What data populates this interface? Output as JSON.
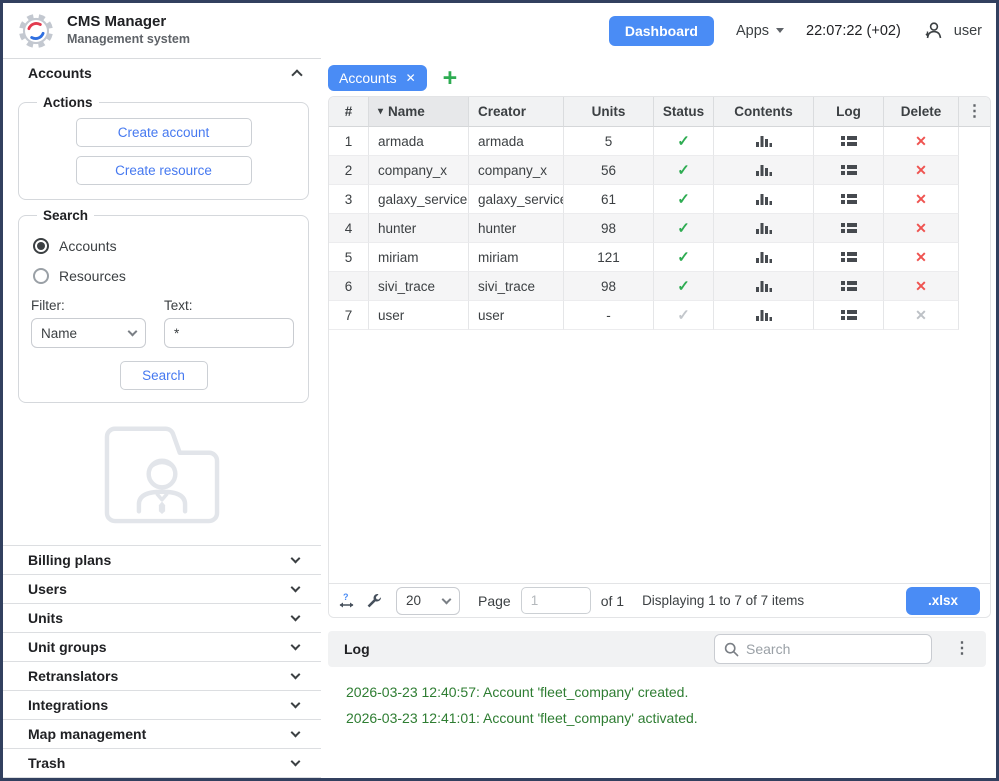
{
  "app": {
    "title": "CMS Manager",
    "subtitle": "Management system",
    "dashboard_button": "Dashboard",
    "apps_menu": "Apps",
    "clock": "22:07:22 (+02)",
    "username": "user"
  },
  "sidebar": {
    "accounts_header": "Accounts",
    "actions": {
      "legend": "Actions",
      "create_account": "Create account",
      "create_resource": "Create resource"
    },
    "search": {
      "legend": "Search",
      "radio_accounts": "Accounts",
      "radio_resources": "Resources",
      "selected_radio": "Accounts",
      "filter_label": "Filter:",
      "filter_value": "Name",
      "text_label": "Text:",
      "text_value": "*",
      "search_button": "Search"
    },
    "sections": [
      {
        "label": "Billing plans"
      },
      {
        "label": "Users"
      },
      {
        "label": "Units"
      },
      {
        "label": "Unit groups"
      },
      {
        "label": "Retranslators"
      },
      {
        "label": "Integrations"
      },
      {
        "label": "Map management"
      },
      {
        "label": "Trash"
      }
    ]
  },
  "tabs": {
    "active_tab": "Accounts",
    "add_button": "+"
  },
  "table": {
    "columns": [
      "#",
      "Name",
      "Creator",
      "Units",
      "Status",
      "Contents",
      "Log",
      "Delete"
    ],
    "sort_column": "Name",
    "rows": [
      {
        "num": "1",
        "name": "armada",
        "creator": "armada",
        "units": "5",
        "active": true
      },
      {
        "num": "2",
        "name": "company_x",
        "creator": "company_x",
        "units": "56",
        "active": true
      },
      {
        "num": "3",
        "name": "galaxy_service",
        "creator": "galaxy_service",
        "units": "61",
        "active": true
      },
      {
        "num": "4",
        "name": "hunter",
        "creator": "hunter",
        "units": "98",
        "active": true
      },
      {
        "num": "5",
        "name": "miriam",
        "creator": "miriam",
        "units": "121",
        "active": true
      },
      {
        "num": "6",
        "name": "sivi_trace",
        "creator": "sivi_trace",
        "units": "98",
        "active": true
      },
      {
        "num": "7",
        "name": "user",
        "creator": "user",
        "units": "-",
        "active": false
      }
    ]
  },
  "toolbar": {
    "page_size": "20",
    "page_label": "Page",
    "page_value": "1",
    "of_label": "of 1",
    "display_text": "Displaying 1 to 7 of 7 items",
    "export_button": ".xlsx"
  },
  "log": {
    "title": "Log",
    "search_placeholder": "Search",
    "entries": [
      "2026-03-23 12:40:57: Account 'fleet_company' created.",
      "2026-03-23 12:41:01: Account 'fleet_company' activated."
    ]
  },
  "colors": {
    "accent": "#4a8cf5",
    "green": "#2eac52",
    "red": "#ef5350",
    "log_green": "#2e7d32"
  }
}
